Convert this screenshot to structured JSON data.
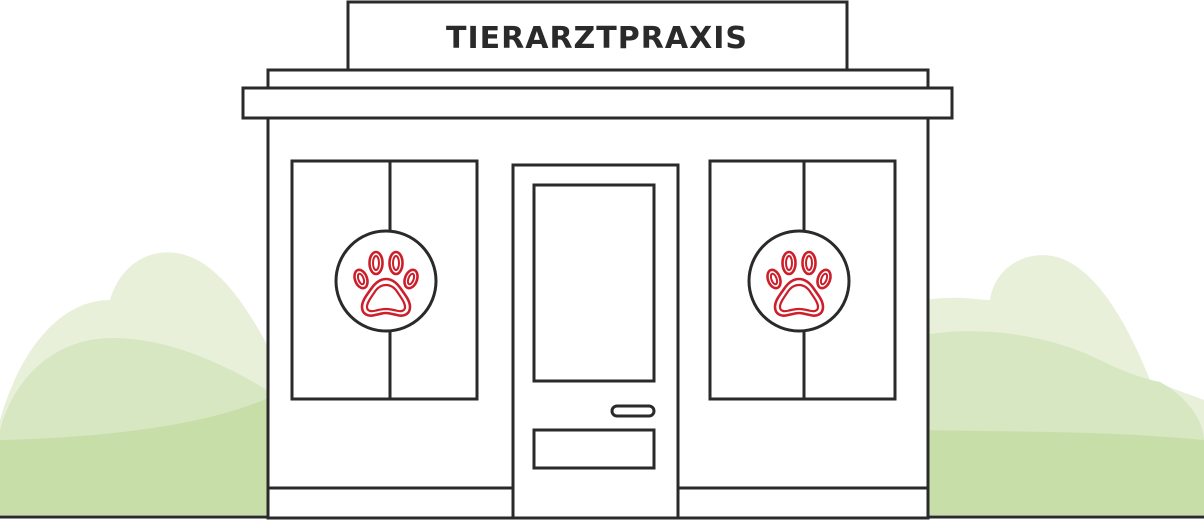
{
  "sign": {
    "text": "TIERARZTPRAXIS"
  },
  "colors": {
    "outline": "#2a2a2a",
    "paw": "#cc1f2a",
    "bush_light": "#e8f0da",
    "bush_mid": "#d7e7c2",
    "bush_dark": "#c8dea9",
    "background": "#ffffff"
  },
  "icons": {
    "left_window_emblem": "paw-print-icon",
    "right_window_emblem": "paw-print-icon"
  }
}
